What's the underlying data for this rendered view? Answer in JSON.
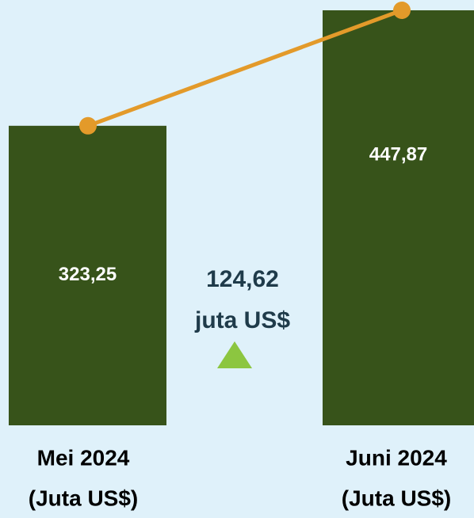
{
  "chart_data": {
    "type": "bar",
    "categories": [
      "Mei 2024",
      "Juni 2024"
    ],
    "values": [
      323.25,
      447.87
    ],
    "value_labels": [
      "323,25",
      "447,87"
    ],
    "unit_label": "(Juta US$)",
    "color": "#37531a",
    "line_color": "#e39a2a",
    "change_label": "124,62",
    "change_unit": "juta US$",
    "change_color": "#8cc640"
  }
}
